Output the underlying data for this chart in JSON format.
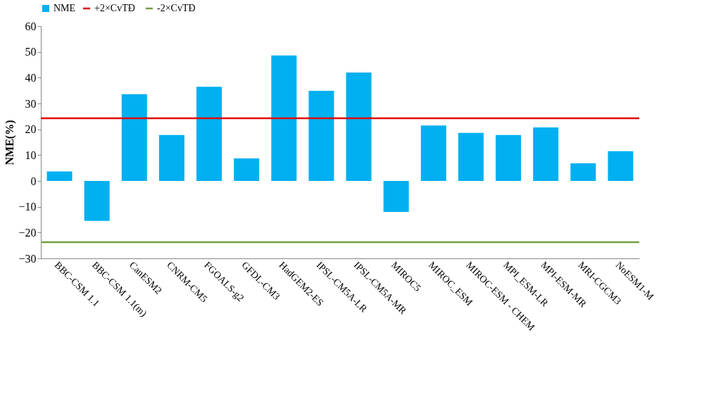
{
  "chart_data": {
    "type": "bar",
    "ylabel": "NME(%)",
    "categories": [
      "BBC-CSM 1.1",
      "BBC-CSM 1.1(m)",
      "CanESM2",
      "CNRM-CM5",
      "FGOALS-g2",
      "GFDL-CM3",
      "HadGEM2-ES",
      "IPSL-CM5A-LR",
      "IPSL-CM5A-MR",
      "MIROC5",
      "MIROC_ESM",
      "MIROC-ESM - CHEM",
      "MPI_ESM-LR",
      "MPI-ESM-MR",
      "MRI-CGCM3",
      "NoESM1-M"
    ],
    "series": [
      {
        "name": "NME",
        "color": "#00b0f0",
        "values": [
          3.7,
          -15.5,
          33.6,
          17.8,
          36.5,
          8.7,
          48.6,
          34.9,
          42.0,
          -12.0,
          21.5,
          18.6,
          17.8,
          20.7,
          6.8,
          11.5
        ]
      }
    ],
    "ref_lines": [
      {
        "axis": "y",
        "value": 24.3,
        "label": "+2×CvTĐ",
        "color": "#e00000"
      },
      {
        "axis": "y",
        "value": -23.7,
        "label": "-2×CvTĐ",
        "color": "#70a040"
      }
    ],
    "ylim": [
      -30,
      60
    ],
    "yticks": [
      -30,
      -20,
      -10,
      0,
      10,
      20,
      30,
      40,
      50,
      60
    ],
    "grid": false,
    "legend": "top"
  }
}
